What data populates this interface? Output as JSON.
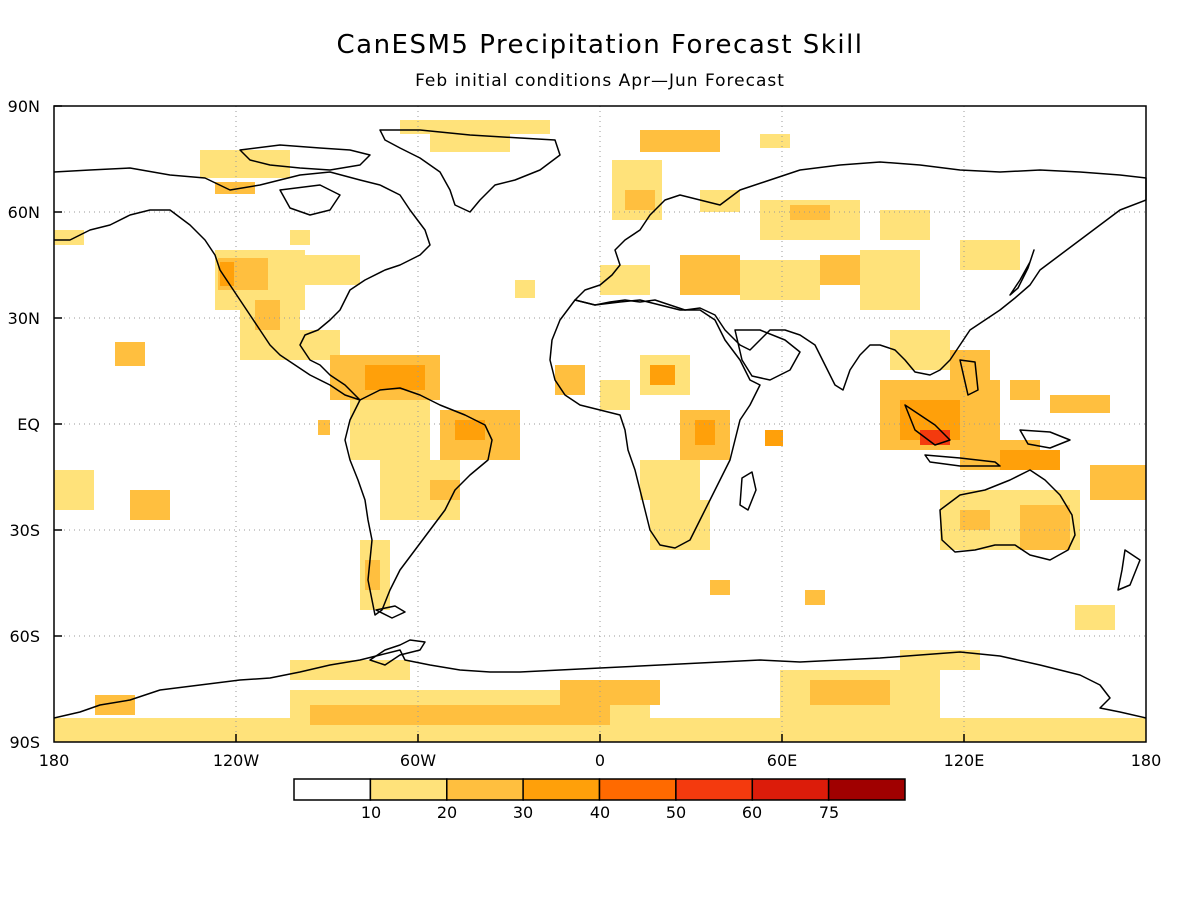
{
  "map": {
    "title": "CanESM5 Precipitation Forecast Skill",
    "subtitle": "Feb initial conditions  Apr—Jun Forecast",
    "lat_ticks": [
      "90N",
      "60N",
      "30N",
      "EQ",
      "30S",
      "60S",
      "90S"
    ],
    "lon_ticks": [
      "180",
      "120W",
      "60W",
      "0",
      "60E",
      "120E",
      "180"
    ],
    "projection": "equirectangular",
    "grid": "dotted",
    "colors": {
      "coastline": "#000000",
      "grid": "#9a9a9a"
    }
  },
  "legend": {
    "labels": [
      "10",
      "20",
      "30",
      "40",
      "50",
      "60",
      "75"
    ],
    "colors": [
      "#ffffff",
      "#ffe27a",
      "#ffbf3f",
      "#ffa00a",
      "#ff6a00",
      "#f43a0e",
      "#dc1c0a",
      "#a00000"
    ]
  }
}
